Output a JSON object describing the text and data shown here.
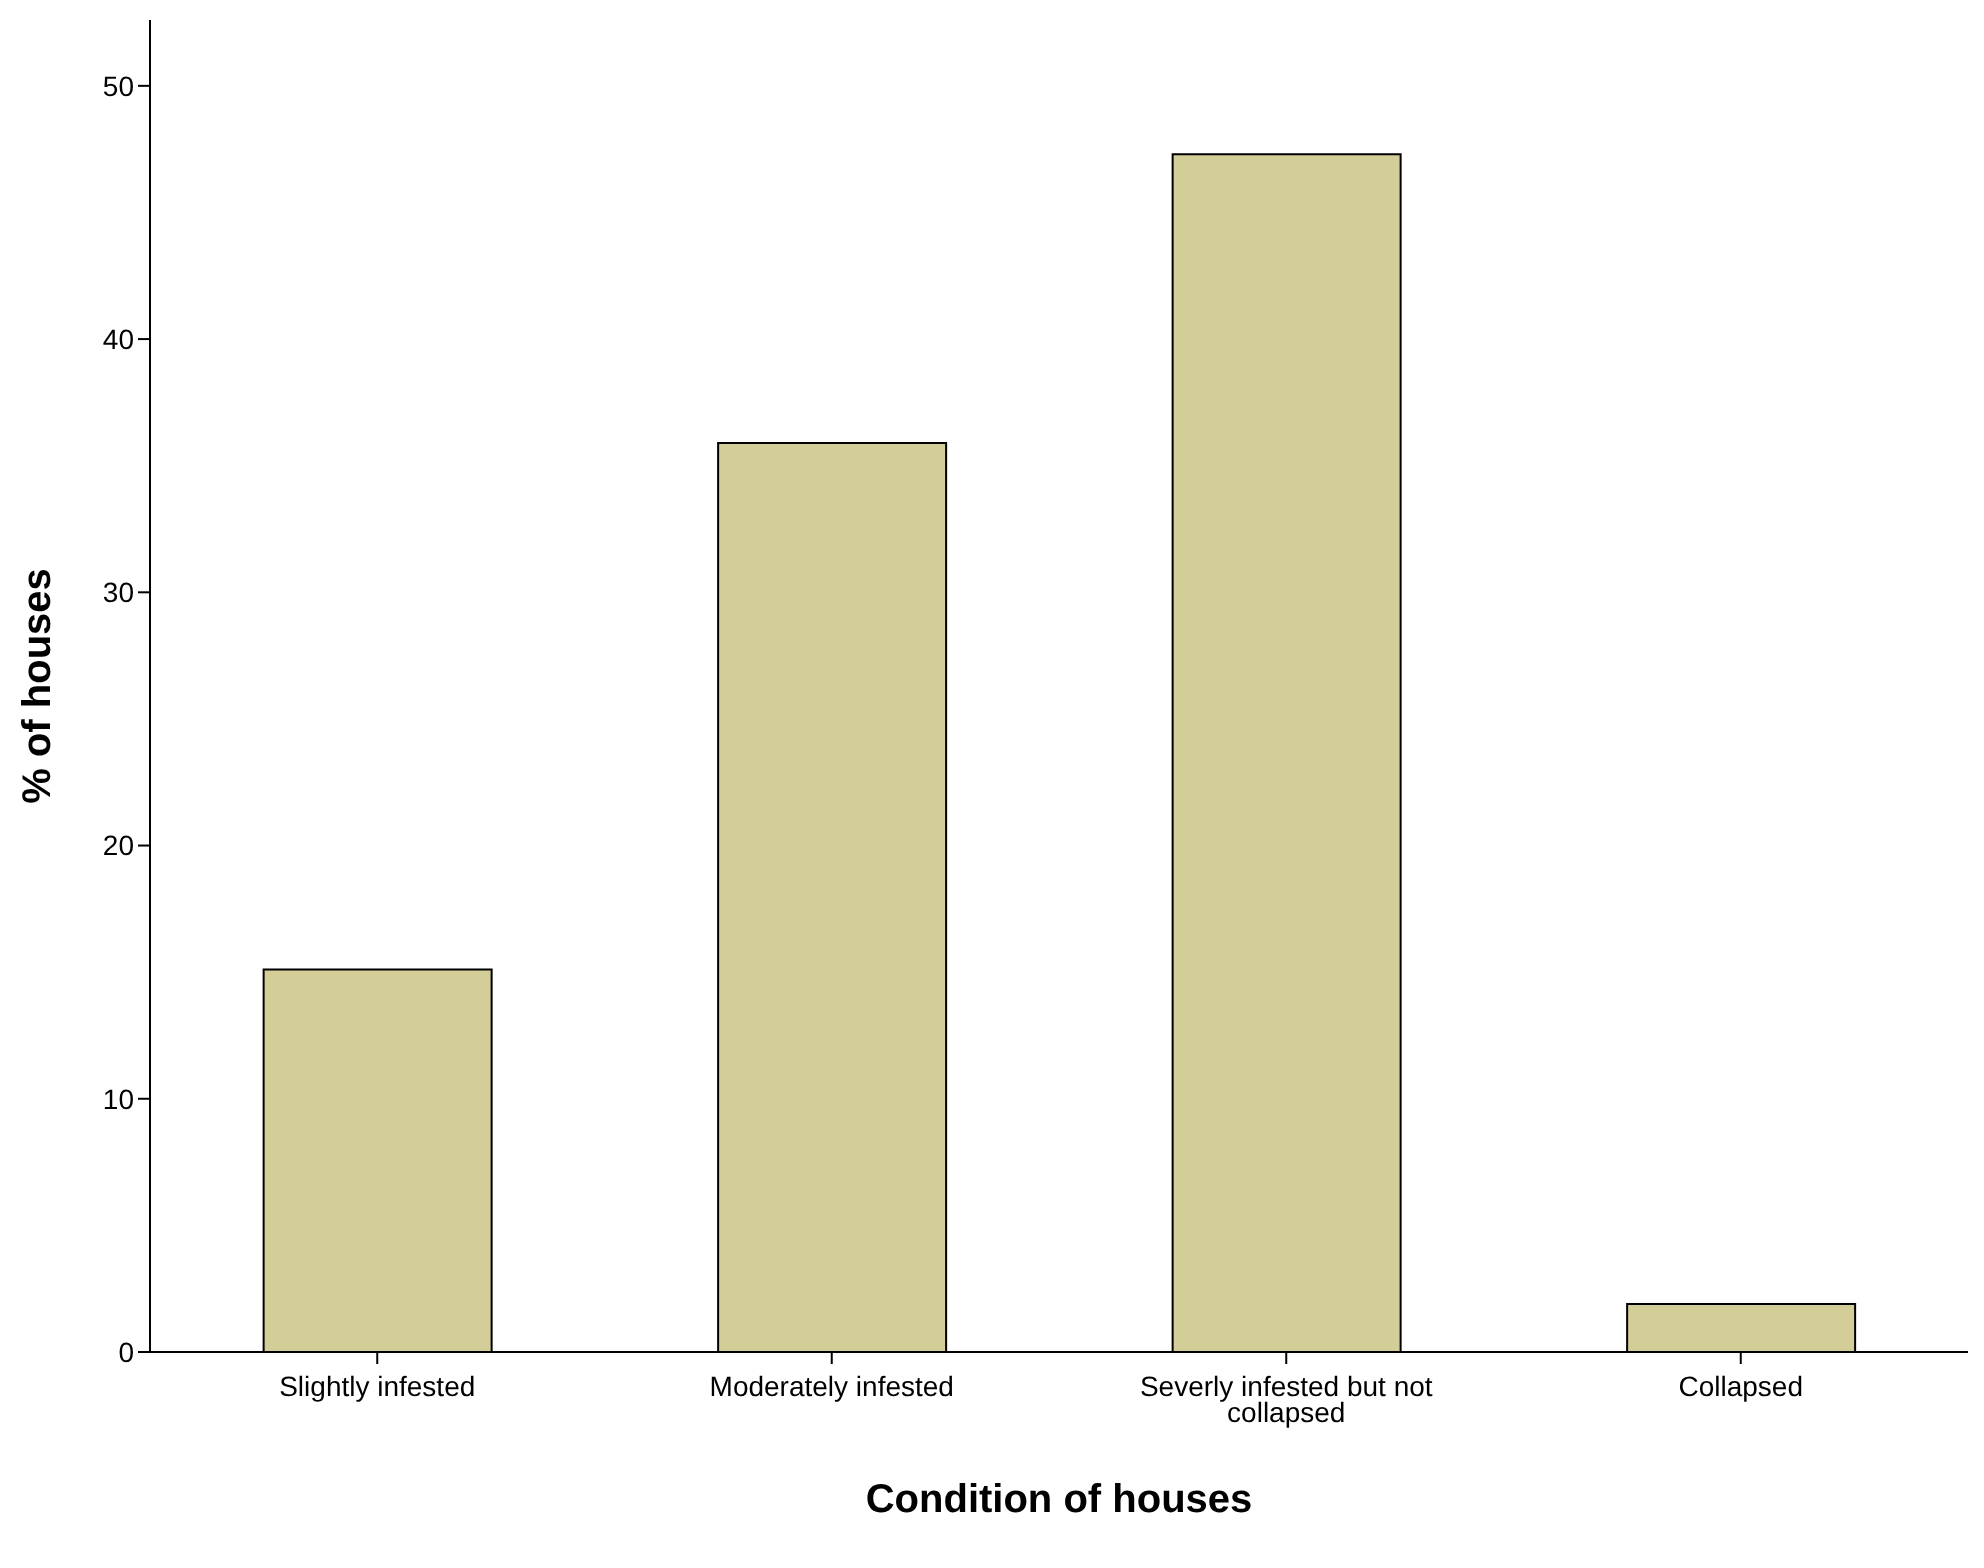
{
  "chart_data": {
    "type": "bar",
    "xlabel": "Condition of houses",
    "ylabel": "% of houses",
    "categories": [
      "Slightly infested",
      "Moderately infested",
      "Severly infested but not collapsed",
      "Collapsed"
    ],
    "values": [
      15.1,
      35.9,
      47.3,
      1.9
    ],
    "color": "#d3cd98",
    "ylim": [
      0,
      52.6
    ],
    "yticks": [
      0,
      10,
      20,
      30,
      40,
      50
    ],
    "grid": false
  }
}
